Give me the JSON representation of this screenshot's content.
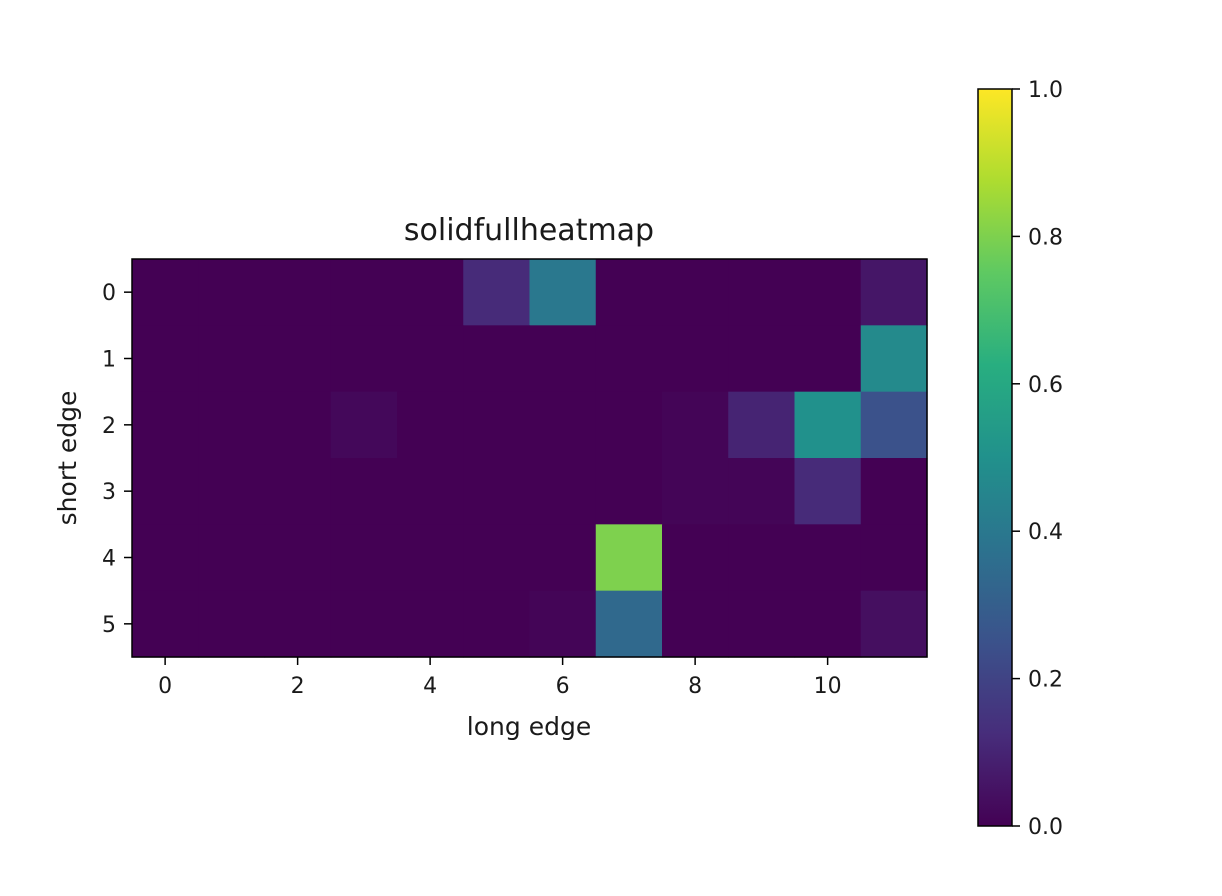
{
  "chart_data": {
    "type": "heatmap",
    "title": "solidfullheatmap",
    "xlabel": "long edge",
    "ylabel": "short edge",
    "x_ticks": [
      0,
      2,
      4,
      6,
      8,
      10
    ],
    "y_ticks": [
      0,
      1,
      2,
      3,
      4,
      5
    ],
    "colorbar": {
      "range": [
        0.0,
        1.0
      ],
      "ticks": [
        "0.0",
        "0.2",
        "0.4",
        "0.6",
        "0.8",
        "1.0"
      ],
      "colormap": "viridis"
    },
    "values": [
      [
        0.0,
        0.0,
        0.0,
        0.0,
        0.0,
        0.12,
        0.4,
        0.0,
        0.0,
        0.0,
        0.0,
        0.06
      ],
      [
        0.0,
        0.0,
        0.0,
        0.0,
        0.0,
        0.0,
        0.0,
        0.0,
        0.0,
        0.0,
        0.0,
        0.47
      ],
      [
        0.0,
        0.0,
        0.0,
        0.02,
        0.0,
        0.0,
        0.0,
        0.0,
        0.01,
        0.1,
        0.5,
        0.25
      ],
      [
        0.0,
        0.0,
        0.0,
        0.0,
        0.0,
        0.0,
        0.0,
        0.0,
        0.01,
        0.01,
        0.12,
        0.0
      ],
      [
        0.0,
        0.0,
        0.0,
        0.0,
        0.0,
        0.0,
        0.0,
        0.8,
        0.0,
        0.0,
        0.0,
        0.0
      ],
      [
        0.0,
        0.0,
        0.0,
        0.0,
        0.0,
        0.0,
        0.01,
        0.34,
        0.0,
        0.0,
        0.0,
        0.04
      ]
    ]
  }
}
